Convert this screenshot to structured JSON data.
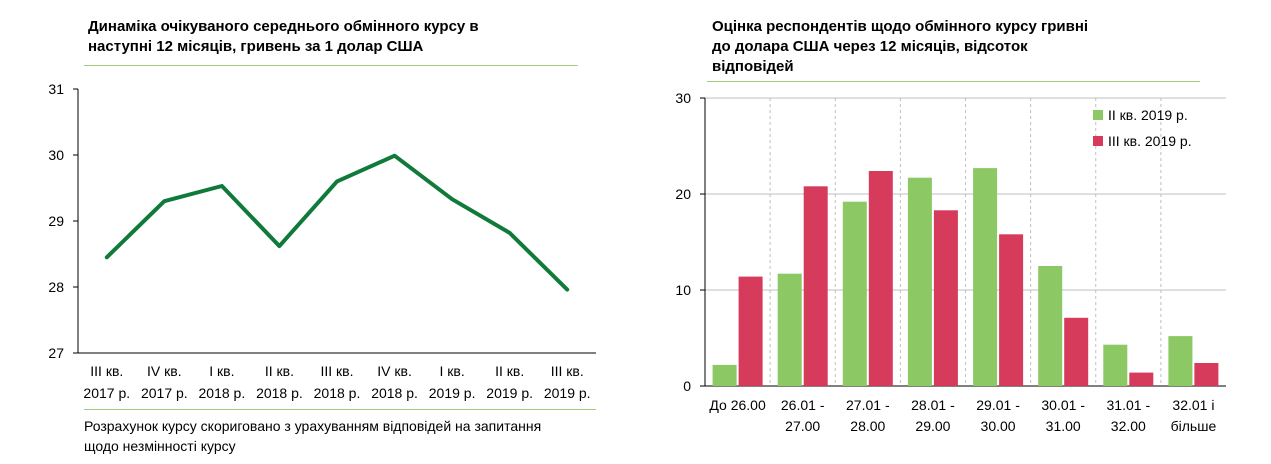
{
  "left_chart": {
    "title_line1": "Динаміка очікуваного середнього обмінного курсу в",
    "title_line2": "наступні 12 місяців, гривень за 1 долар США",
    "note_line1": "Розрахунок курсу скориговано з урахуванням відповідей на запитання",
    "note_line2": "щодо незмінності курсу"
  },
  "right_chart": {
    "title_line1": "Оцінка респондентів щодо обмінного курсу гривні",
    "title_line2": "до долара США через 12 місяців, відсоток",
    "title_line3": "відповідей"
  },
  "colors": {
    "line": "#0f7a3a",
    "series_q2": "#8cc864",
    "series_q3": "#d63b5c",
    "rule": "#9fcf7e",
    "axis": "#000000"
  },
  "chart_data": [
    {
      "type": "line",
      "categories": [
        [
          "III кв.",
          "2017 р."
        ],
        [
          "IV кв.",
          "2017 р."
        ],
        [
          "I кв.",
          "2018 р."
        ],
        [
          "II кв.",
          "2018 р."
        ],
        [
          "III кв.",
          "2018 р."
        ],
        [
          "IV кв.",
          "2018 р."
        ],
        [
          "I кв.",
          "2019 р."
        ],
        [
          "II кв.",
          "2019 р."
        ],
        [
          "III кв.",
          "2019 р."
        ]
      ],
      "values": [
        28.45,
        29.3,
        29.53,
        28.62,
        29.6,
        29.99,
        29.33,
        28.82,
        27.96
      ],
      "ylim": [
        27,
        31
      ],
      "yticks": [
        27,
        28,
        29,
        30,
        31
      ],
      "grid": false
    },
    {
      "type": "bar",
      "categories": [
        [
          "До 26.00",
          ""
        ],
        [
          "26.01 -",
          "27.00"
        ],
        [
          "27.01 -",
          "28.00"
        ],
        [
          "28.01 -",
          "29.00"
        ],
        [
          "29.01 -",
          "30.00"
        ],
        [
          "30.01 -",
          "31.00"
        ],
        [
          "31.01 -",
          "32.00"
        ],
        [
          "32.01 і",
          "більше"
        ]
      ],
      "series": [
        {
          "name": "II кв. 2019 р.",
          "values": [
            2.2,
            11.7,
            19.2,
            21.7,
            22.7,
            12.5,
            4.3,
            5.2
          ]
        },
        {
          "name": "III кв. 2019 р.",
          "values": [
            11.4,
            20.8,
            22.4,
            18.3,
            15.8,
            7.1,
            1.4,
            2.4
          ]
        }
      ],
      "ylim": [
        0,
        30
      ],
      "yticks": [
        0,
        10,
        20,
        30
      ],
      "grid": true,
      "legend": "top-right"
    }
  ]
}
